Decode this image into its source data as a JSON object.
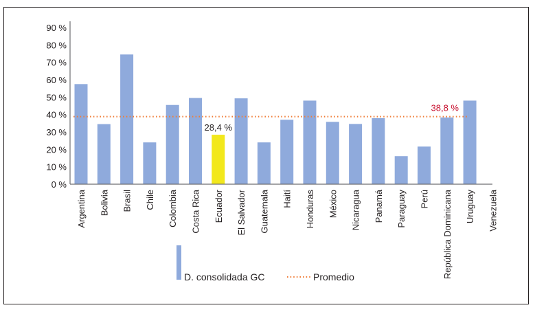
{
  "chart_data": {
    "type": "bar",
    "title": "",
    "xlabel": "",
    "ylabel": "",
    "ylim": [
      0,
      90
    ],
    "yticks": [
      0,
      10,
      20,
      30,
      40,
      50,
      60,
      70,
      80,
      90
    ],
    "ytick_labels": [
      "0 %",
      "10 %",
      "20 %",
      "30 %",
      "40 %",
      "50 %",
      "60 %",
      "70 %",
      "80 %",
      "90 %"
    ],
    "grid": false,
    "categories": [
      "Argentina",
      "Bolivia",
      "Brasil",
      "Chile",
      "Colombia",
      "Costa Rica",
      "Ecuador",
      "El Salvador",
      "Guatemala",
      "Haití",
      "Honduras",
      "México",
      "Nicaragua",
      "Panamá",
      "Paraguay",
      "Perú",
      "República Dominicana",
      "Uruguay",
      "Venezuela"
    ],
    "series": [
      {
        "name": "D. consolidada GC",
        "type": "bar",
        "color": "#8faadc",
        "highlight_color": "#f2e81c",
        "highlight_category": "Ecuador",
        "values": [
          57.5,
          34.5,
          74.5,
          24,
          45.5,
          49.5,
          28.4,
          49.3,
          24,
          37,
          48,
          35.8,
          34.6,
          37.9,
          16.1,
          21.6,
          38.3,
          48,
          null
        ]
      },
      {
        "name": "Promedio",
        "type": "line",
        "style": "dotted",
        "color": "#f07e3a",
        "value": 38.8
      }
    ],
    "annotations": [
      {
        "category": "Ecuador",
        "text": "28,4 %",
        "color": "#231f20"
      },
      {
        "category": "Uruguay",
        "text": "38,8 %",
        "color": "#c8102e"
      }
    ],
    "legend": {
      "position": "bottom",
      "entries": [
        "D. consolidada GC",
        "Promedio"
      ]
    }
  }
}
